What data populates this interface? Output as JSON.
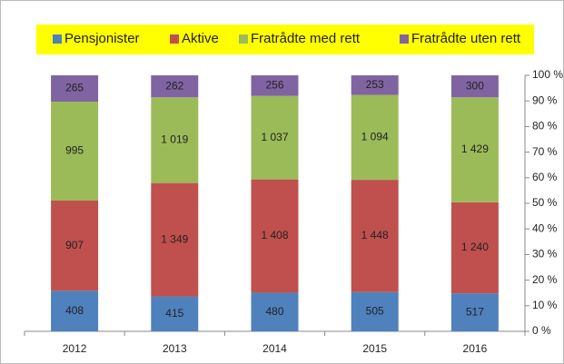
{
  "chart_data": {
    "type": "bar",
    "stacking": "percent",
    "categories": [
      "2012",
      "2013",
      "2014",
      "2015",
      "2016"
    ],
    "series": [
      {
        "name": "Pensjonister",
        "color": "#4f81bd",
        "values": [
          408,
          415,
          480,
          505,
          517
        ]
      },
      {
        "name": "Aktive",
        "color": "#c0504d",
        "values": [
          907,
          1349,
          1408,
          1448,
          1240
        ],
        "value_labels": [
          "907",
          "1 349",
          "1 408",
          "1 448",
          "1 240"
        ]
      },
      {
        "name": "Fratrådte med rett",
        "color": "#9bbb59",
        "values": [
          995,
          1019,
          1037,
          1094,
          1429
        ],
        "value_labels": [
          "995",
          "1 019",
          "1 037",
          "1 094",
          "1 429"
        ]
      },
      {
        "name": "Fratrådte uten rett",
        "color": "#8064a2",
        "values": [
          265,
          262,
          256,
          253,
          300
        ]
      }
    ],
    "ylim": [
      0,
      100
    ],
    "yticks": [
      {
        "value": 0,
        "label": "0 %"
      },
      {
        "value": 10,
        "label": "10 %"
      },
      {
        "value": 20,
        "label": "20 %"
      },
      {
        "value": 30,
        "label": "30 %"
      },
      {
        "value": 40,
        "label": "40 %"
      },
      {
        "value": 50,
        "label": "50 %"
      },
      {
        "value": 60,
        "label": "60 %"
      },
      {
        "value": 70,
        "label": "70 %"
      },
      {
        "value": 80,
        "label": "80 %"
      },
      {
        "value": 90,
        "label": "90 %"
      },
      {
        "value": 100,
        "label": "100 %"
      }
    ],
    "grid": false,
    "legend": "top",
    "legend_background": "#ffff00"
  }
}
